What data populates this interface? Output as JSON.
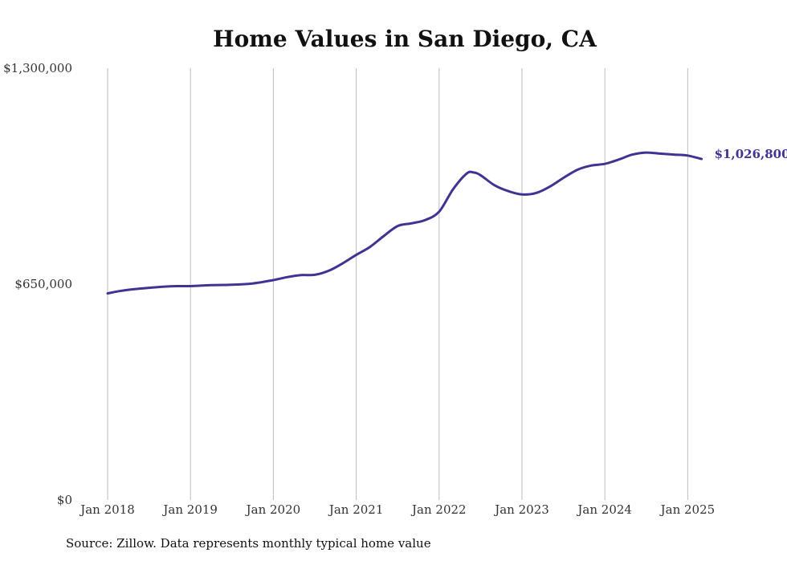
{
  "chart_data": {
    "type": "line",
    "title": "Home Values in San Diego, CA",
    "xlabel": "",
    "ylabel": "",
    "ylim": [
      0,
      1300000
    ],
    "yticks": [
      {
        "value": 0,
        "label": "$0"
      },
      {
        "value": 650000,
        "label": "$650,000"
      },
      {
        "value": 1300000,
        "label": "$1,300,000"
      }
    ],
    "xticks": [
      {
        "date": "2018-01",
        "label": "Jan 2018"
      },
      {
        "date": "2019-01",
        "label": "Jan 2019"
      },
      {
        "date": "2020-01",
        "label": "Jan 2020"
      },
      {
        "date": "2021-01",
        "label": "Jan 2021"
      },
      {
        "date": "2022-01",
        "label": "Jan 2022"
      },
      {
        "date": "2023-01",
        "label": "Jan 2023"
      },
      {
        "date": "2024-01",
        "label": "Jan 2024"
      },
      {
        "date": "2025-01",
        "label": "Jan 2025"
      }
    ],
    "grid": {
      "vertical": true,
      "horizontal": false
    },
    "series": [
      {
        "color": "#3f3493",
        "end_label": "$1,026,800",
        "x": [
          "2018-01",
          "2018-03",
          "2018-06",
          "2018-09",
          "2018-11",
          "2019-01",
          "2019-04",
          "2019-07",
          "2019-10",
          "2020-01",
          "2020-03",
          "2020-05",
          "2020-07",
          "2020-09",
          "2020-11",
          "2021-01",
          "2021-03",
          "2021-05",
          "2021-07",
          "2021-09",
          "2021-11",
          "2022-01",
          "2022-03",
          "2022-05",
          "2022-06",
          "2022-07",
          "2022-09",
          "2022-11",
          "2023-01",
          "2023-03",
          "2023-05",
          "2023-07",
          "2023-09",
          "2023-11",
          "2024-01",
          "2024-03",
          "2024-05",
          "2024-07",
          "2024-09",
          "2024-11",
          "2025-01",
          "2025-03"
        ],
        "values": [
          622000,
          630000,
          637000,
          642000,
          644000,
          644000,
          647000,
          648000,
          652000,
          662000,
          671000,
          677000,
          678000,
          690000,
          712000,
          738000,
          762000,
          795000,
          825000,
          833000,
          843000,
          868000,
          935000,
          983000,
          986000,
          978000,
          948000,
          930000,
          920000,
          924000,
          943000,
          970000,
          994000,
          1007000,
          1012000,
          1025000,
          1040000,
          1046000,
          1043000,
          1040000,
          1037000,
          1026800
        ]
      }
    ]
  },
  "source_note": "Source: Zillow. Data represents monthly typical home value"
}
